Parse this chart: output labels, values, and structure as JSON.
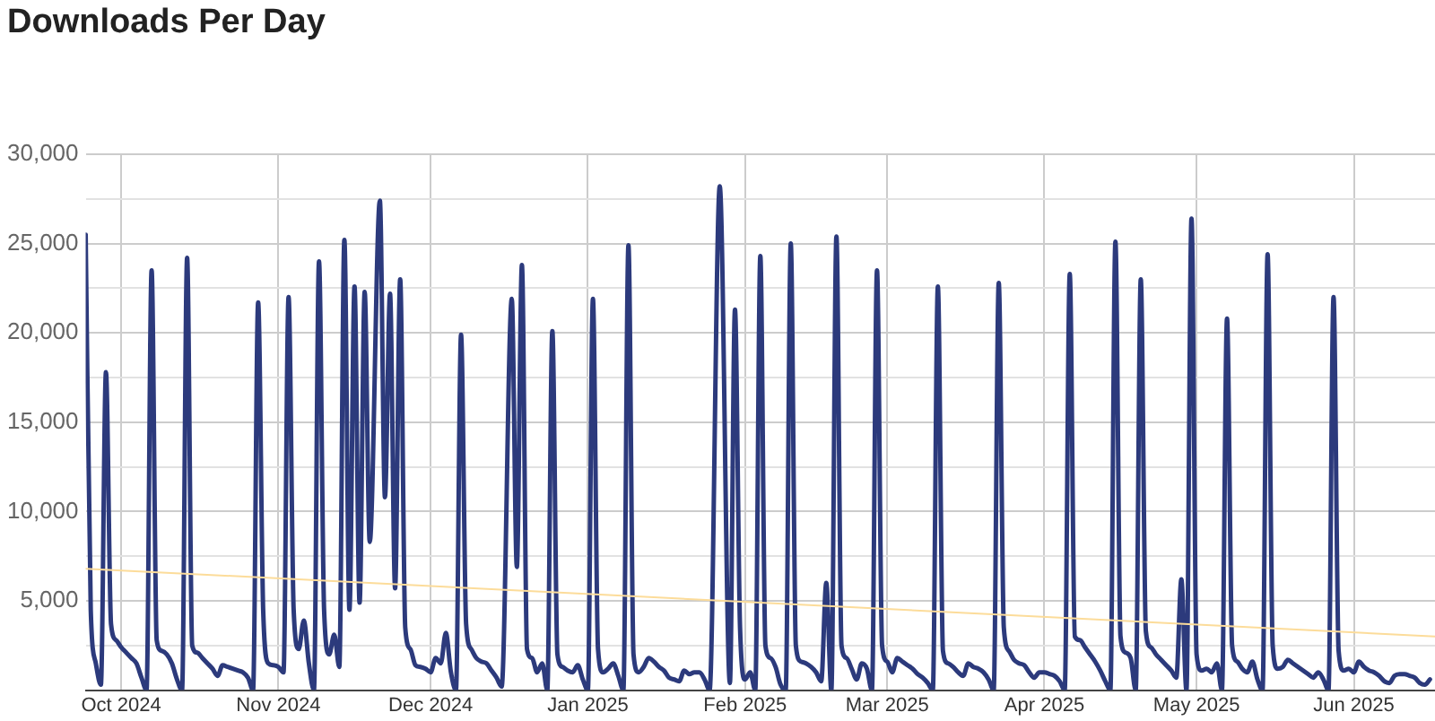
{
  "chart_data": {
    "type": "line",
    "title": "Downloads Per Day",
    "xlim": [
      "2024-09-24",
      "2025-06-17"
    ],
    "xticks": [
      {
        "value": "2024-10-01",
        "label": "Oct 2024"
      },
      {
        "value": "2024-11-01",
        "label": "Nov 2024"
      },
      {
        "value": "2024-12-01",
        "label": "Dec 2024"
      },
      {
        "value": "2025-01-01",
        "label": "Jan 2025"
      },
      {
        "value": "2025-02-01",
        "label": "Feb 2025"
      },
      {
        "value": "2025-03-01",
        "label": "Mar 2025"
      },
      {
        "value": "2025-04-01",
        "label": "Apr 2025"
      },
      {
        "value": "2025-05-01",
        "label": "May 2025"
      },
      {
        "value": "2025-06-01",
        "label": "Jun 2025"
      }
    ],
    "ylim": [
      0,
      30000
    ],
    "yticks": [
      {
        "value": 0,
        "label": null
      },
      {
        "value": 2500,
        "label": null
      },
      {
        "value": 5000,
        "label": "5,000"
      },
      {
        "value": 7500,
        "label": null
      },
      {
        "value": 10000,
        "label": "10,000"
      },
      {
        "value": 12500,
        "label": null
      },
      {
        "value": 15000,
        "label": "15,000"
      },
      {
        "value": 17500,
        "label": null
      },
      {
        "value": 20000,
        "label": "20,000"
      },
      {
        "value": 22500,
        "label": null
      },
      {
        "value": 25000,
        "label": "25,000"
      },
      {
        "value": 27500,
        "label": null
      },
      {
        "value": 30000,
        "label": "30,000"
      }
    ],
    "grid": true,
    "legend": false,
    "marker": "none",
    "series": [
      {
        "type": "line",
        "color": "#2c3a7c",
        "x": [
          "2024-09-24",
          "2024-09-25",
          "2024-09-26",
          "2024-09-27",
          "2024-09-28",
          "2024-09-29",
          "2024-09-30",
          "2024-10-01",
          "2024-10-02",
          "2024-10-03",
          "2024-10-04",
          "2024-10-05",
          "2024-10-06",
          "2024-10-07",
          "2024-10-08",
          "2024-10-09",
          "2024-10-10",
          "2024-10-11",
          "2024-10-12",
          "2024-10-13",
          "2024-10-14",
          "2024-10-15",
          "2024-10-16",
          "2024-10-17",
          "2024-10-18",
          "2024-10-19",
          "2024-10-20",
          "2024-10-21",
          "2024-10-22",
          "2024-10-23",
          "2024-10-24",
          "2024-10-25",
          "2024-10-26",
          "2024-10-27",
          "2024-10-28",
          "2024-10-29",
          "2024-10-30",
          "2024-10-31",
          "2024-11-01",
          "2024-11-02",
          "2024-11-03",
          "2024-11-04",
          "2024-11-05",
          "2024-11-06",
          "2024-11-07",
          "2024-11-08",
          "2024-11-09",
          "2024-11-10",
          "2024-11-11",
          "2024-11-12",
          "2024-11-13",
          "2024-11-14",
          "2024-11-15",
          "2024-11-16",
          "2024-11-17",
          "2024-11-18",
          "2024-11-19",
          "2024-11-21",
          "2024-11-22",
          "2024-11-23",
          "2024-11-24",
          "2024-11-25",
          "2024-11-26",
          "2024-11-27",
          "2024-11-28",
          "2024-11-29",
          "2024-11-30",
          "2024-12-01",
          "2024-12-02",
          "2024-12-03",
          "2024-12-04",
          "2024-12-05",
          "2024-12-06",
          "2024-12-07",
          "2024-12-08",
          "2024-12-09",
          "2024-12-10",
          "2024-12-11",
          "2024-12-12",
          "2024-12-13",
          "2024-12-14",
          "2024-12-15",
          "2024-12-17",
          "2024-12-18",
          "2024-12-19",
          "2024-12-20",
          "2024-12-21",
          "2024-12-22",
          "2024-12-23",
          "2024-12-24",
          "2024-12-25",
          "2024-12-26",
          "2024-12-27",
          "2024-12-28",
          "2024-12-29",
          "2024-12-30",
          "2024-12-31",
          "2025-01-01",
          "2025-01-02",
          "2025-01-03",
          "2025-01-04",
          "2025-01-05",
          "2025-01-06",
          "2025-01-07",
          "2025-01-08",
          "2025-01-09",
          "2025-01-10",
          "2025-01-11",
          "2025-01-12",
          "2025-01-13",
          "2025-01-14",
          "2025-01-15",
          "2025-01-16",
          "2025-01-17",
          "2025-01-18",
          "2025-01-19",
          "2025-01-20",
          "2025-01-21",
          "2025-01-22",
          "2025-01-23",
          "2025-01-24",
          "2025-01-25",
          "2025-01-27",
          "2025-01-29",
          "2025-01-30",
          "2025-01-31",
          "2025-02-01",
          "2025-02-02",
          "2025-02-03",
          "2025-02-04",
          "2025-02-05",
          "2025-02-06",
          "2025-02-07",
          "2025-02-08",
          "2025-02-09",
          "2025-02-10",
          "2025-02-11",
          "2025-02-12",
          "2025-02-13",
          "2025-02-14",
          "2025-02-15",
          "2025-02-16",
          "2025-02-17",
          "2025-02-18",
          "2025-02-19",
          "2025-02-20",
          "2025-02-21",
          "2025-02-22",
          "2025-02-23",
          "2025-02-24",
          "2025-02-25",
          "2025-02-26",
          "2025-02-27",
          "2025-02-28",
          "2025-03-01",
          "2025-03-02",
          "2025-03-03",
          "2025-03-04",
          "2025-03-05",
          "2025-03-06",
          "2025-03-07",
          "2025-03-08",
          "2025-03-09",
          "2025-03-10",
          "2025-03-11",
          "2025-03-12",
          "2025-03-13",
          "2025-03-14",
          "2025-03-15",
          "2025-03-16",
          "2025-03-17",
          "2025-03-18",
          "2025-03-19",
          "2025-03-20",
          "2025-03-21",
          "2025-03-22",
          "2025-03-23",
          "2025-03-24",
          "2025-03-25",
          "2025-03-26",
          "2025-03-27",
          "2025-03-28",
          "2025-03-29",
          "2025-03-30",
          "2025-03-31",
          "2025-04-01",
          "2025-04-02",
          "2025-04-03",
          "2025-04-04",
          "2025-04-05",
          "2025-04-06",
          "2025-04-07",
          "2025-04-08",
          "2025-04-09",
          "2025-04-10",
          "2025-04-11",
          "2025-04-12",
          "2025-04-13",
          "2025-04-14",
          "2025-04-15",
          "2025-04-16",
          "2025-04-17",
          "2025-04-18",
          "2025-04-19",
          "2025-04-20",
          "2025-04-21",
          "2025-04-22",
          "2025-04-23",
          "2025-04-24",
          "2025-04-25",
          "2025-04-26",
          "2025-04-27",
          "2025-04-28",
          "2025-04-29",
          "2025-04-30",
          "2025-05-01",
          "2025-05-02",
          "2025-05-03",
          "2025-05-04",
          "2025-05-05",
          "2025-05-06",
          "2025-05-07",
          "2025-05-08",
          "2025-05-09",
          "2025-05-10",
          "2025-05-11",
          "2025-05-12",
          "2025-05-13",
          "2025-05-14",
          "2025-05-15",
          "2025-05-16",
          "2025-05-17",
          "2025-05-18",
          "2025-05-19",
          "2025-05-20",
          "2025-05-21",
          "2025-05-22",
          "2025-05-23",
          "2025-05-24",
          "2025-05-25",
          "2025-05-26",
          "2025-05-27",
          "2025-05-28",
          "2025-05-29",
          "2025-05-30",
          "2025-05-31",
          "2025-06-01",
          "2025-06-02",
          "2025-06-03",
          "2025-06-04",
          "2025-06-05",
          "2025-06-06",
          "2025-06-07",
          "2025-06-08",
          "2025-06-09",
          "2025-06-10",
          "2025-06-11",
          "2025-06-12",
          "2025-06-13",
          "2025-06-14",
          "2025-06-15",
          "2025-06-16"
        ],
        "values": [
          25500,
          4500,
          1500,
          300,
          17800,
          3700,
          2800,
          2400,
          2100,
          1800,
          1500,
          700,
          0,
          23500,
          2800,
          2200,
          2000,
          1500,
          600,
          0,
          24200,
          2500,
          2100,
          1800,
          1500,
          1200,
          800,
          1400,
          1300,
          1200,
          1100,
          1000,
          700,
          0,
          21700,
          4400,
          1500,
          1400,
          1300,
          1000,
          22000,
          4500,
          2300,
          3900,
          1500,
          0,
          24000,
          4500,
          2000,
          3100,
          1300,
          25200,
          4500,
          22600,
          4900,
          22300,
          8300,
          27400,
          10800,
          22200,
          5700,
          23000,
          3500,
          2300,
          1400,
          1300,
          1200,
          1000,
          1800,
          1500,
          3200,
          1000,
          0,
          19900,
          3700,
          2300,
          1800,
          1600,
          1500,
          1100,
          700,
          200,
          21900,
          6900,
          23800,
          2300,
          1800,
          1000,
          1500,
          0,
          20100,
          2000,
          1300,
          1100,
          1000,
          1400,
          600,
          0,
          21900,
          2300,
          1000,
          1200,
          1500,
          800,
          0,
          24900,
          2000,
          1000,
          1300,
          1800,
          1600,
          1300,
          1100,
          700,
          600,
          500,
          1100,
          900,
          1000,
          1000,
          600,
          0,
          28200,
          400,
          21300,
          3500,
          600,
          1000,
          0,
          24300,
          2500,
          1800,
          1300,
          300,
          0,
          25000,
          2500,
          1600,
          1500,
          1300,
          1000,
          500,
          6000,
          0,
          25400,
          2500,
          1800,
          1200,
          600,
          1500,
          1200,
          0,
          23500,
          2500,
          1600,
          1000,
          1800,
          1600,
          1400,
          1200,
          900,
          700,
          400,
          0,
          22600,
          2200,
          1500,
          1300,
          1000,
          800,
          1500,
          1300,
          1200,
          1000,
          600,
          0,
          22800,
          3500,
          2200,
          1700,
          1500,
          1400,
          1000,
          700,
          1000,
          1000,
          900,
          800,
          500,
          0,
          23300,
          3000,
          2800,
          2400,
          2000,
          1600,
          1100,
          500,
          0,
          25100,
          3000,
          2100,
          1800,
          0,
          23000,
          3300,
          2400,
          2000,
          1700,
          1400,
          1100,
          700,
          6200,
          0,
          26400,
          2000,
          1100,
          1200,
          1000,
          1500,
          0,
          20800,
          2500,
          1600,
          1200,
          1000,
          1600,
          600,
          0,
          24400,
          2500,
          1200,
          1300,
          1700,
          1500,
          1300,
          1100,
          900,
          700,
          1000,
          600,
          0,
          22000,
          2200,
          1100,
          1200,
          1000,
          1600,
          1300,
          1100,
          1000,
          800,
          500,
          400,
          800,
          900,
          900,
          800,
          700,
          400,
          300,
          600
        ]
      },
      {
        "type": "line",
        "color": "#fcdc9a",
        "x": [
          "2024-09-24",
          "2025-06-17"
        ],
        "values": [
          6800,
          3000
        ]
      }
    ]
  }
}
